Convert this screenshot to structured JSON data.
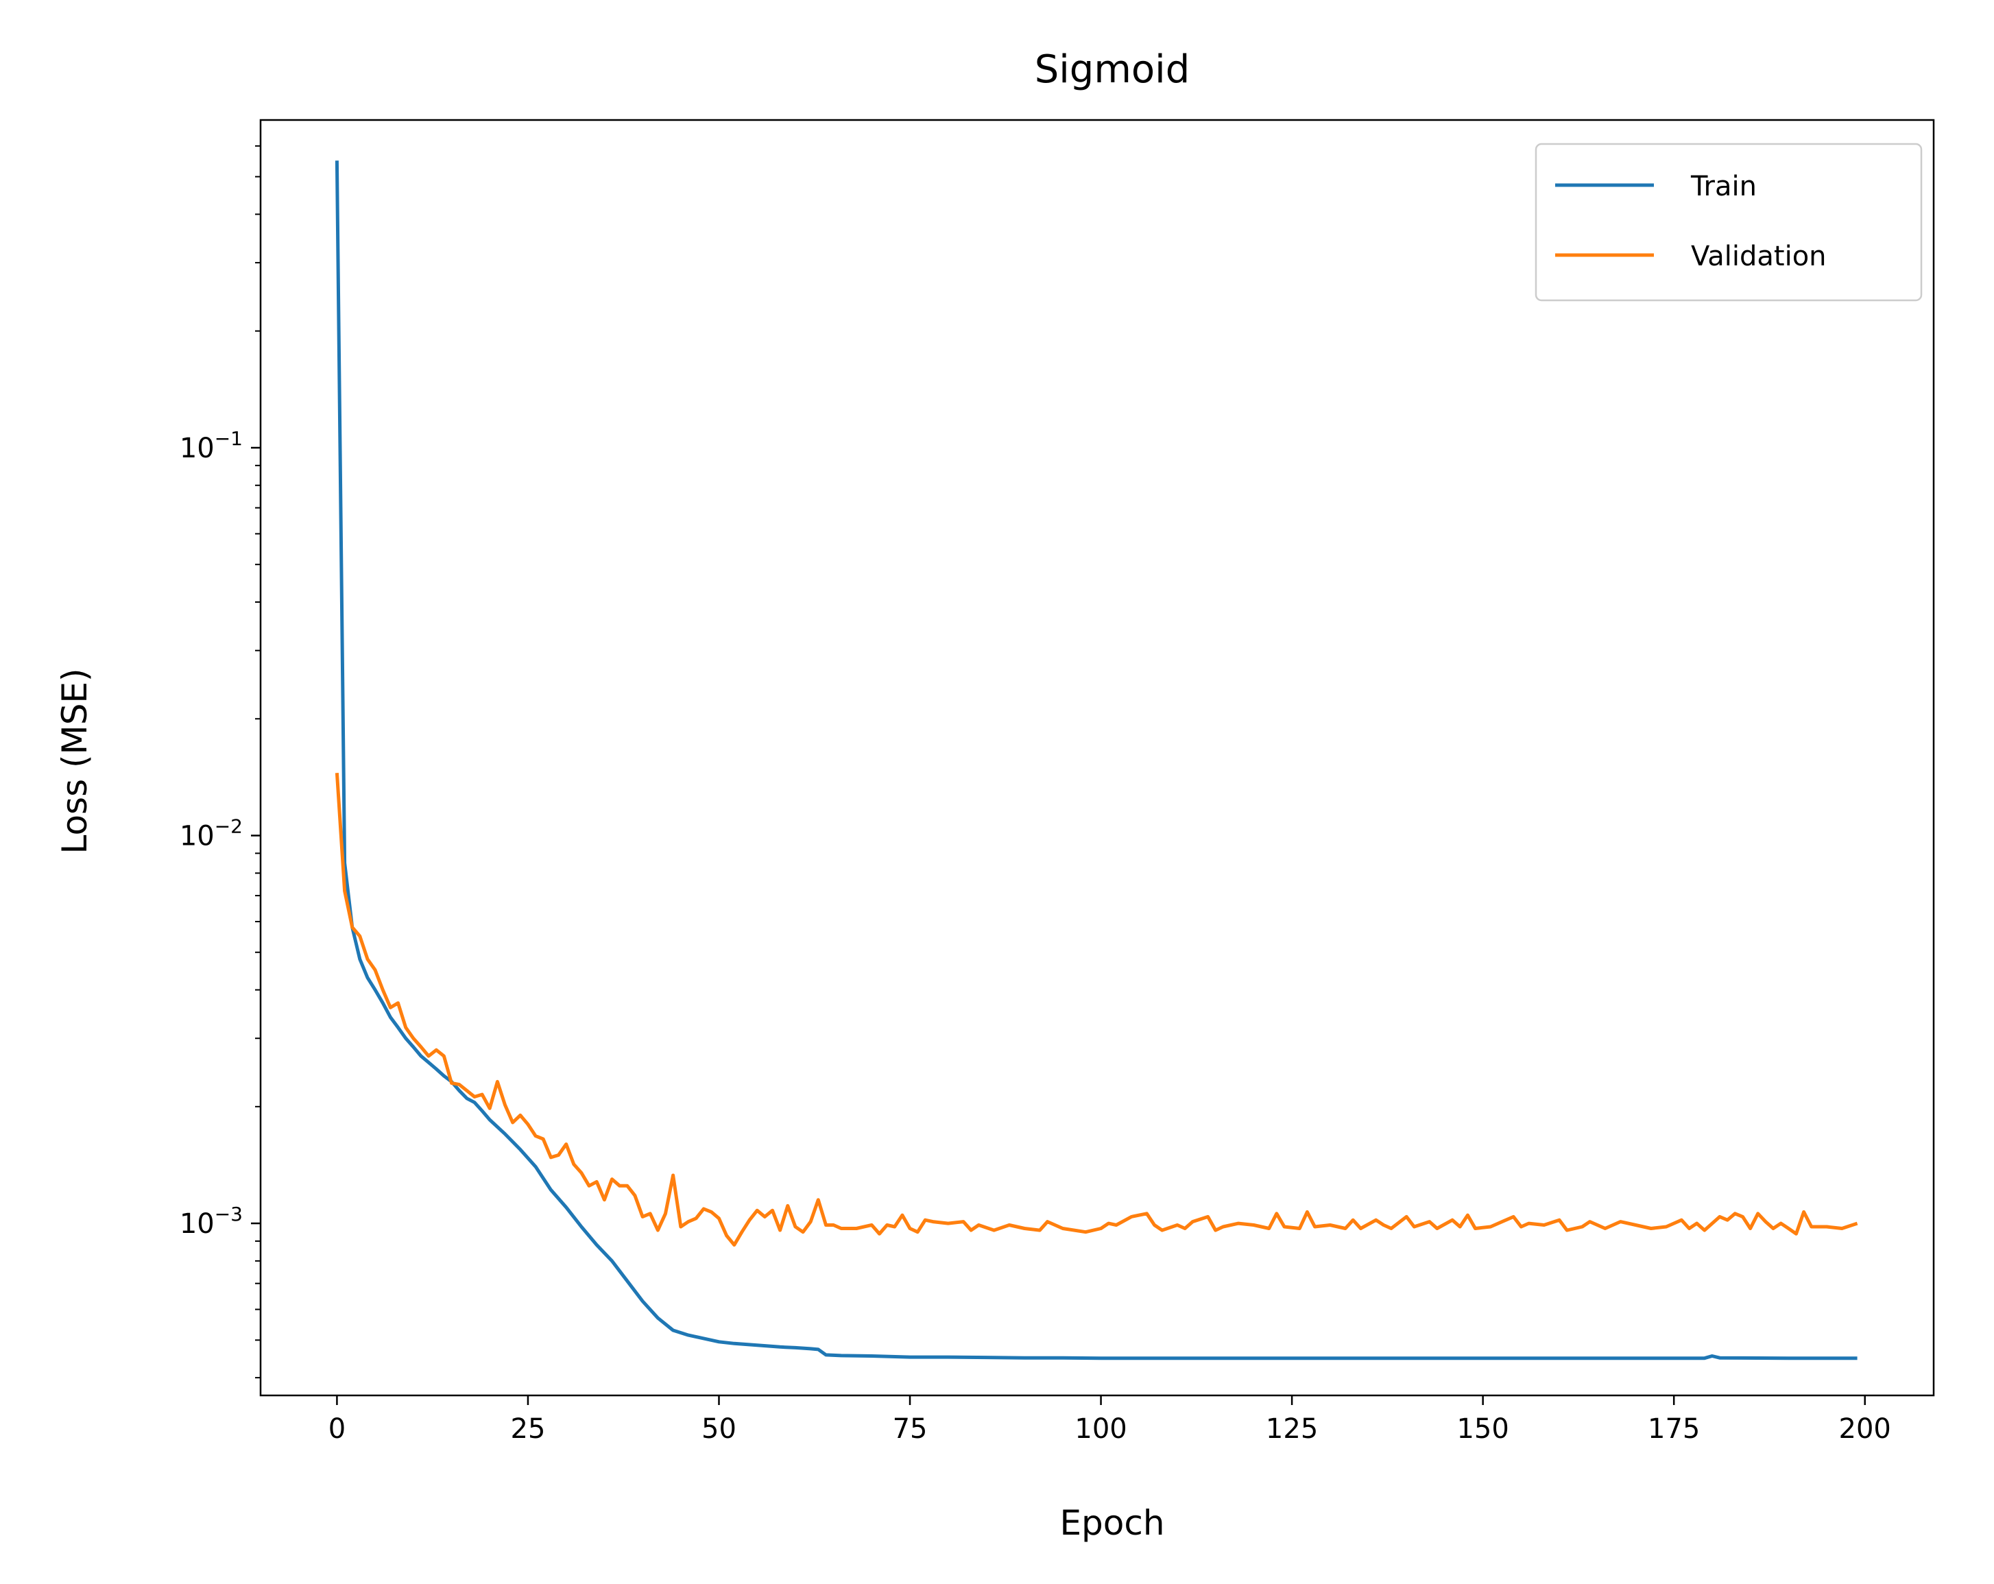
{
  "chart_data": {
    "type": "line",
    "title": "Sigmoid",
    "xlabel": "Epoch",
    "ylabel": "Loss (MSE)",
    "xlim": [
      -10,
      209
    ],
    "ylim": [
      0.00036,
      0.7
    ],
    "yscale": "log",
    "grid": false,
    "legend_position": "top-right",
    "x_ticks": [
      {
        "value": 0,
        "label": "0"
      },
      {
        "value": 25,
        "label": "25"
      },
      {
        "value": 50,
        "label": "50"
      },
      {
        "value": 75,
        "label": "75"
      },
      {
        "value": 100,
        "label": "100"
      },
      {
        "value": 125,
        "label": "125"
      },
      {
        "value": 150,
        "label": "150"
      },
      {
        "value": 175,
        "label": "175"
      },
      {
        "value": 200,
        "label": "200"
      }
    ],
    "y_ticks": [
      {
        "value": 0.1,
        "base": "10",
        "exp": "−1"
      },
      {
        "value": 0.01,
        "base": "10",
        "exp": "−2"
      },
      {
        "value": 0.001,
        "base": "10",
        "exp": "−3"
      }
    ],
    "series": [
      {
        "name": "Train",
        "color": "#1f77b4",
        "points": [
          [
            0,
            0.55
          ],
          [
            1,
            0.0085
          ],
          [
            2,
            0.0058
          ],
          [
            3,
            0.0048
          ],
          [
            4,
            0.0043
          ],
          [
            5,
            0.004
          ],
          [
            6,
            0.0037
          ],
          [
            7,
            0.0034
          ],
          [
            8,
            0.0032
          ],
          [
            9,
            0.003
          ],
          [
            10,
            0.00285
          ],
          [
            11,
            0.0027
          ],
          [
            12,
            0.0026
          ],
          [
            13,
            0.0025
          ],
          [
            14,
            0.0024
          ],
          [
            15,
            0.00232
          ],
          [
            16,
            0.0022
          ],
          [
            17,
            0.0021
          ],
          [
            18,
            0.00205
          ],
          [
            19,
            0.00195
          ],
          [
            20,
            0.00185
          ],
          [
            22,
            0.0017
          ],
          [
            24,
            0.00155
          ],
          [
            26,
            0.0014
          ],
          [
            28,
            0.00122
          ],
          [
            30,
            0.0011
          ],
          [
            32,
            0.00098
          ],
          [
            34,
            0.00088
          ],
          [
            36,
            0.0008
          ],
          [
            38,
            0.00071
          ],
          [
            40,
            0.00063
          ],
          [
            42,
            0.00057
          ],
          [
            44,
            0.00053
          ],
          [
            46,
            0.000515
          ],
          [
            48,
            0.000505
          ],
          [
            50,
            0.000495
          ],
          [
            52,
            0.00049
          ],
          [
            55,
            0.000485
          ],
          [
            58,
            0.00048
          ],
          [
            60,
            0.000478
          ],
          [
            62,
            0.000475
          ],
          [
            63,
            0.000473
          ],
          [
            64,
            0.000458
          ],
          [
            66,
            0.000456
          ],
          [
            70,
            0.000455
          ],
          [
            75,
            0.000452
          ],
          [
            80,
            0.000452
          ],
          [
            85,
            0.000451
          ],
          [
            90,
            0.00045
          ],
          [
            95,
            0.00045
          ],
          [
            100,
            0.000449
          ],
          [
            110,
            0.000449
          ],
          [
            120,
            0.000449
          ],
          [
            130,
            0.000449
          ],
          [
            140,
            0.000449
          ],
          [
            150,
            0.000449
          ],
          [
            160,
            0.000449
          ],
          [
            170,
            0.000449
          ],
          [
            179,
            0.000449
          ],
          [
            180,
            0.000455
          ],
          [
            181,
            0.00045
          ],
          [
            190,
            0.000449
          ],
          [
            199,
            0.000449
          ]
        ]
      },
      {
        "name": "Validation",
        "color": "#ff7f0e",
        "points": [
          [
            0,
            0.0145
          ],
          [
            1,
            0.0072
          ],
          [
            2,
            0.0058
          ],
          [
            3,
            0.0055
          ],
          [
            4,
            0.0048
          ],
          [
            5,
            0.0045
          ],
          [
            6,
            0.004
          ],
          [
            7,
            0.0036
          ],
          [
            8,
            0.0037
          ],
          [
            9,
            0.0032
          ],
          [
            10,
            0.003
          ],
          [
            11,
            0.00285
          ],
          [
            12,
            0.0027
          ],
          [
            13,
            0.0028
          ],
          [
            14,
            0.0027
          ],
          [
            15,
            0.0023
          ],
          [
            16,
            0.00228
          ],
          [
            17,
            0.0022
          ],
          [
            18,
            0.00212
          ],
          [
            19,
            0.00215
          ],
          [
            20,
            0.00198
          ],
          [
            21,
            0.00232
          ],
          [
            22,
            0.00202
          ],
          [
            23,
            0.00182
          ],
          [
            24,
            0.0019
          ],
          [
            25,
            0.0018
          ],
          [
            26,
            0.00168
          ],
          [
            27,
            0.00165
          ],
          [
            28,
            0.00148
          ],
          [
            29,
            0.0015
          ],
          [
            30,
            0.0016
          ],
          [
            31,
            0.00142
          ],
          [
            32,
            0.00135
          ],
          [
            33,
            0.00125
          ],
          [
            34,
            0.00128
          ],
          [
            35,
            0.00115
          ],
          [
            36,
            0.0013
          ],
          [
            37,
            0.00125
          ],
          [
            38,
            0.00125
          ],
          [
            39,
            0.00118
          ],
          [
            40,
            0.00104
          ],
          [
            41,
            0.00106
          ],
          [
            42,
            0.00096
          ],
          [
            43,
            0.00106
          ],
          [
            44,
            0.00133
          ],
          [
            45,
            0.00098
          ],
          [
            46,
            0.00101
          ],
          [
            47,
            0.00103
          ],
          [
            48,
            0.00109
          ],
          [
            49,
            0.00107
          ],
          [
            50,
            0.00103
          ],
          [
            51,
            0.00093
          ],
          [
            52,
            0.00088
          ],
          [
            53,
            0.00095
          ],
          [
            54,
            0.00102
          ],
          [
            55,
            0.00108
          ],
          [
            56,
            0.00104
          ],
          [
            57,
            0.00108
          ],
          [
            58,
            0.00096
          ],
          [
            59,
            0.00111
          ],
          [
            60,
            0.00098
          ],
          [
            61,
            0.00095
          ],
          [
            62,
            0.00101
          ],
          [
            63,
            0.00115
          ],
          [
            64,
            0.00099
          ],
          [
            65,
            0.00099
          ],
          [
            66,
            0.00097
          ],
          [
            68,
            0.00097
          ],
          [
            70,
            0.00099
          ],
          [
            71,
            0.00094
          ],
          [
            72,
            0.00099
          ],
          [
            73,
            0.00098
          ],
          [
            74,
            0.00105
          ],
          [
            75,
            0.00097
          ],
          [
            76,
            0.00095
          ],
          [
            77,
            0.00102
          ],
          [
            78,
            0.00101
          ],
          [
            80,
            0.001
          ],
          [
            82,
            0.00101
          ],
          [
            83,
            0.00096
          ],
          [
            84,
            0.00099
          ],
          [
            86,
            0.00096
          ],
          [
            88,
            0.00099
          ],
          [
            90,
            0.00097
          ],
          [
            92,
            0.00096
          ],
          [
            93,
            0.00101
          ],
          [
            95,
            0.00097
          ],
          [
            98,
            0.00095
          ],
          [
            100,
            0.00097
          ],
          [
            101,
            0.001
          ],
          [
            102,
            0.00099
          ],
          [
            104,
            0.00104
          ],
          [
            106,
            0.00106
          ],
          [
            107,
            0.00099
          ],
          [
            108,
            0.00096
          ],
          [
            110,
            0.00099
          ],
          [
            111,
            0.00097
          ],
          [
            112,
            0.00101
          ],
          [
            114,
            0.00104
          ],
          [
            115,
            0.00096
          ],
          [
            116,
            0.00098
          ],
          [
            118,
            0.001
          ],
          [
            120,
            0.00099
          ],
          [
            122,
            0.00097
          ],
          [
            123,
            0.00106
          ],
          [
            124,
            0.00098
          ],
          [
            126,
            0.00097
          ],
          [
            127,
            0.00107
          ],
          [
            128,
            0.00098
          ],
          [
            130,
            0.00099
          ],
          [
            132,
            0.00097
          ],
          [
            133,
            0.00102
          ],
          [
            134,
            0.00097
          ],
          [
            136,
            0.00102
          ],
          [
            137,
            0.00099
          ],
          [
            138,
            0.00097
          ],
          [
            140,
            0.00104
          ],
          [
            141,
            0.00098
          ],
          [
            143,
            0.00101
          ],
          [
            144,
            0.00097
          ],
          [
            146,
            0.00102
          ],
          [
            147,
            0.00098
          ],
          [
            148,
            0.00105
          ],
          [
            149,
            0.00097
          ],
          [
            151,
            0.00098
          ],
          [
            152,
            0.001
          ],
          [
            154,
            0.00104
          ],
          [
            155,
            0.00098
          ],
          [
            156,
            0.001
          ],
          [
            158,
            0.00099
          ],
          [
            160,
            0.00102
          ],
          [
            161,
            0.00096
          ],
          [
            163,
            0.00098
          ],
          [
            164,
            0.00101
          ],
          [
            166,
            0.00097
          ],
          [
            168,
            0.00101
          ],
          [
            170,
            0.00099
          ],
          [
            172,
            0.00097
          ],
          [
            174,
            0.00098
          ],
          [
            176,
            0.00102
          ],
          [
            177,
            0.00097
          ],
          [
            178,
            0.001
          ],
          [
            179,
            0.00096
          ],
          [
            181,
            0.00104
          ],
          [
            182,
            0.00102
          ],
          [
            183,
            0.00106
          ],
          [
            184,
            0.00104
          ],
          [
            185,
            0.00097
          ],
          [
            186,
            0.00106
          ],
          [
            187,
            0.00101
          ],
          [
            188,
            0.00097
          ],
          [
            189,
            0.001
          ],
          [
            190,
            0.00097
          ],
          [
            191,
            0.00094
          ],
          [
            192,
            0.00107
          ],
          [
            193,
            0.00098
          ],
          [
            195,
            0.00098
          ],
          [
            197,
            0.00097
          ],
          [
            199,
            0.001
          ]
        ]
      }
    ]
  }
}
